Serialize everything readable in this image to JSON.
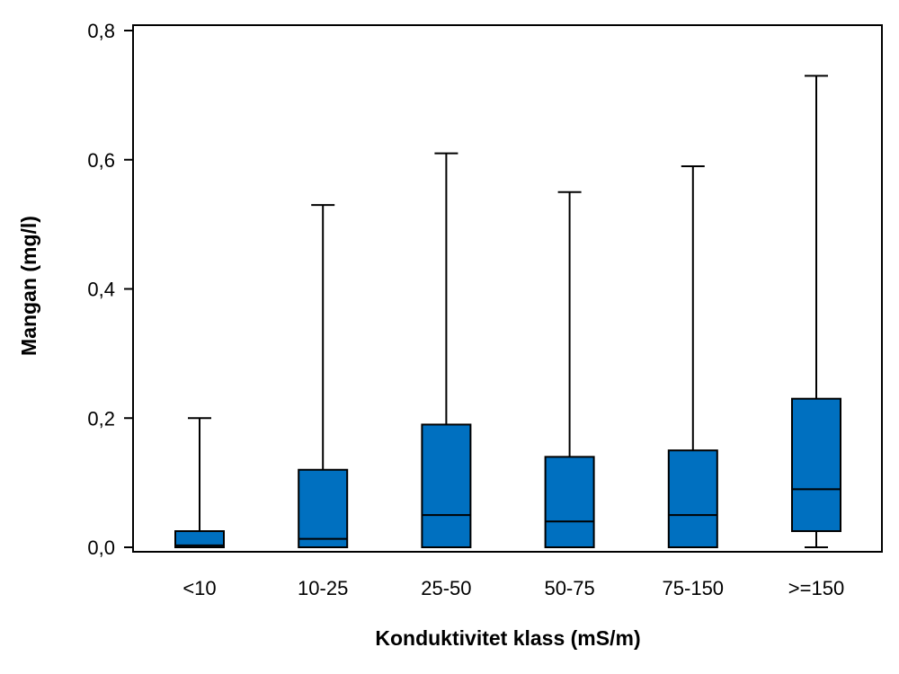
{
  "chart_data": {
    "type": "boxplot",
    "title": "",
    "xlabel": "Konduktivitet klass (mS/m)",
    "ylabel": "Mangan (mg/l)",
    "ylim": [
      0,
      0.8
    ],
    "yticks": [
      {
        "value": 0.0,
        "label": "0,0"
      },
      {
        "value": 0.2,
        "label": "0,2"
      },
      {
        "value": 0.4,
        "label": "0,4"
      },
      {
        "value": 0.6,
        "label": "0,6"
      },
      {
        "value": 0.8,
        "label": "0,8"
      }
    ],
    "categories": [
      "<10",
      "10-25",
      "25-50",
      "50-75",
      "75-150",
      ">=150"
    ],
    "boxes": [
      {
        "category": "<10",
        "whisker_low": 0.0,
        "q1": 0.0,
        "median": 0.003,
        "q3": 0.025,
        "whisker_high": 0.2
      },
      {
        "category": "10-25",
        "whisker_low": 0.0,
        "q1": 0.0,
        "median": 0.013,
        "q3": 0.12,
        "whisker_high": 0.53
      },
      {
        "category": "25-50",
        "whisker_low": 0.0,
        "q1": 0.0,
        "median": 0.05,
        "q3": 0.19,
        "whisker_high": 0.61
      },
      {
        "category": "50-75",
        "whisker_low": 0.0,
        "q1": 0.0,
        "median": 0.04,
        "q3": 0.14,
        "whisker_high": 0.55
      },
      {
        "category": "75-150",
        "whisker_low": 0.0,
        "q1": 0.0,
        "median": 0.05,
        "q3": 0.15,
        "whisker_high": 0.59
      },
      {
        "category": ">=150",
        "whisker_low": 0.0,
        "q1": 0.025,
        "median": 0.09,
        "q3": 0.23,
        "whisker_high": 0.73
      }
    ],
    "box_color": "#0070C0",
    "grid": false,
    "legend": "none"
  }
}
